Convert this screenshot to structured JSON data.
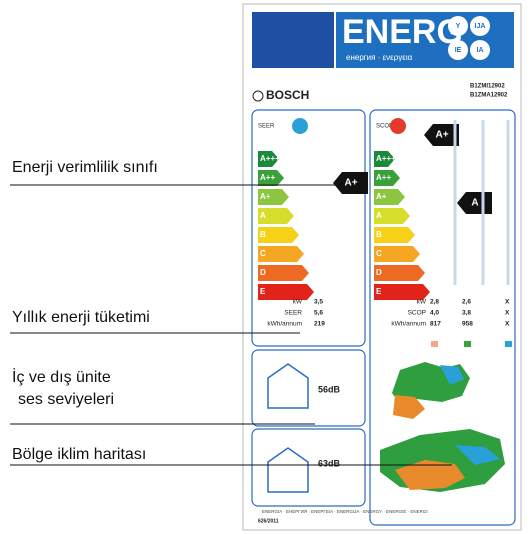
{
  "header": {
    "logo": "ENERG",
    "subtitle": "енергия · ενεργεια",
    "badges": [
      "Y",
      "IJA",
      "IE",
      "IA"
    ]
  },
  "brand": "BOSCH",
  "models": [
    "B1ZMI12902",
    "B1ZMA12902"
  ],
  "classes": [
    "A+++",
    "A++",
    "A+",
    "A",
    "B",
    "C",
    "D",
    "E"
  ],
  "cooling": {
    "label": "SEER",
    "rating": "A+",
    "rows": [
      [
        "kW",
        "3,5"
      ],
      [
        "SEER",
        "5,6"
      ],
      [
        "kWh/annum",
        "219"
      ]
    ]
  },
  "heating": {
    "label": "SCOP",
    "ratings": [
      "A+",
      "A"
    ],
    "rows": [
      [
        "kW",
        "2,8",
        "2,6",
        "X"
      ],
      [
        "SCOP",
        "4,0",
        "3,8",
        "X"
      ],
      [
        "kWh/annum",
        "817",
        "958",
        "X"
      ]
    ]
  },
  "sound": [
    "56dB",
    "63dB"
  ],
  "footer": {
    "languages": "ENERGIA · ЕНЕРГИЯ · ΕΝΕΡΓΕΙΑ · ENERGIJA · ENERGY · ENERGIE · ENERGI",
    "regulation": "626/2011"
  },
  "annotations": [
    [
      "Enerji verimlilik sınıfı"
    ],
    [
      "Yıllık enerji tüketimi"
    ],
    [
      "İç ve dış ünite",
      "ses seviyeleri"
    ],
    [
      "Bölge iklim haritası"
    ]
  ]
}
